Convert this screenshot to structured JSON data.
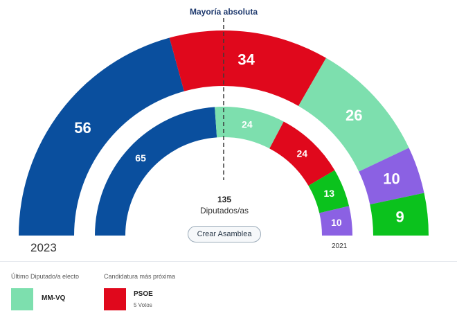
{
  "majority_label": "Mayoría absoluta",
  "center": {
    "total": "135",
    "unit": "Diputados/as"
  },
  "create_button": "Crear Asamblea",
  "chart_data": [
    {
      "type": "pie",
      "shape": "semicircle",
      "label": "2023",
      "order": "left-to-right",
      "slices": [
        {
          "value": 56,
          "label": "56",
          "color": "#0a4f9e"
        },
        {
          "value": 34,
          "label": "34",
          "color": "#e0081c"
        },
        {
          "value": 26,
          "label": "26",
          "color": "#7ddfae"
        },
        {
          "value": 10,
          "label": "10",
          "color": "#8b61e3"
        },
        {
          "value": 9,
          "label": "9",
          "color": "#0bc21d"
        }
      ]
    },
    {
      "type": "pie",
      "shape": "semicircle",
      "label": "2021",
      "order": "left-to-right",
      "slices": [
        {
          "value": 65,
          "label": "65",
          "color": "#0a4f9e"
        },
        {
          "value": 24,
          "label": "24",
          "color": "#7ddfae"
        },
        {
          "value": 24,
          "label": "24",
          "color": "#e0081c"
        },
        {
          "value": 13,
          "label": "13",
          "color": "#0bc21d"
        },
        {
          "value": 10,
          "label": "10",
          "color": "#8b61e3"
        }
      ]
    }
  ],
  "legend": {
    "last_elected": {
      "heading": "Último Diputado/a electo",
      "name": "MM-VQ",
      "color": "#7ddfae"
    },
    "closest": {
      "heading": "Candidatura más próxima",
      "name": "PSOE",
      "votes": "5 Votos",
      "color": "#e0081c"
    }
  }
}
